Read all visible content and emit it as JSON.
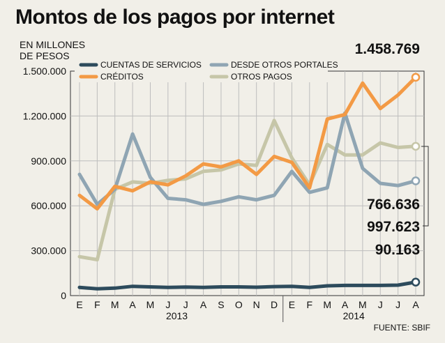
{
  "chart_data": {
    "type": "line",
    "title": "Montos de los pagos por internet",
    "ylabel": "EN MILLONES\nDE PESOS",
    "source": "FUENTE: SBIF",
    "ylim": [
      0,
      1500000
    ],
    "yticks": [
      "0",
      "300.000",
      "600.000",
      "900.000",
      "1.200.000",
      "1.500.000"
    ],
    "categories": [
      "E",
      "F",
      "M",
      "A",
      "M",
      "J",
      "J",
      "A",
      "S",
      "O",
      "N",
      "D",
      "E",
      "F",
      "M",
      "A",
      "M",
      "J",
      "J",
      "A"
    ],
    "years": [
      "2013",
      "2014"
    ],
    "grid": true,
    "legend_position": "top",
    "series": [
      {
        "name": "CUENTAS DE SERVICIOS",
        "color": "#2d4b5c",
        "values": [
          55000,
          45000,
          50000,
          62000,
          58000,
          55000,
          57000,
          55000,
          58000,
          58000,
          56000,
          60000,
          62000,
          55000,
          65000,
          68000,
          68000,
          68000,
          70000,
          90163
        ]
      },
      {
        "name": "CRÉDITOS",
        "color": "#f39a45",
        "values": [
          670000,
          580000,
          730000,
          700000,
          760000,
          740000,
          800000,
          880000,
          860000,
          900000,
          810000,
          930000,
          890000,
          720000,
          1180000,
          1210000,
          1420000,
          1250000,
          1340000,
          1458769
        ]
      },
      {
        "name": "DESDE OTROS PORTALES",
        "color": "#8fa5b3",
        "values": [
          810000,
          610000,
          710000,
          1080000,
          790000,
          650000,
          640000,
          610000,
          630000,
          660000,
          640000,
          670000,
          830000,
          690000,
          720000,
          1220000,
          850000,
          750000,
          735000,
          766636
        ]
      },
      {
        "name": "OTROS PAGOS",
        "color": "#c6c6a8",
        "values": [
          260000,
          240000,
          710000,
          760000,
          750000,
          770000,
          780000,
          830000,
          840000,
          880000,
          870000,
          1170000,
          920000,
          740000,
          1010000,
          940000,
          940000,
          1020000,
          990000,
          997623
        ]
      }
    ],
    "callouts": [
      "1.458.769",
      "766.636",
      "997.623",
      "90.163"
    ]
  }
}
